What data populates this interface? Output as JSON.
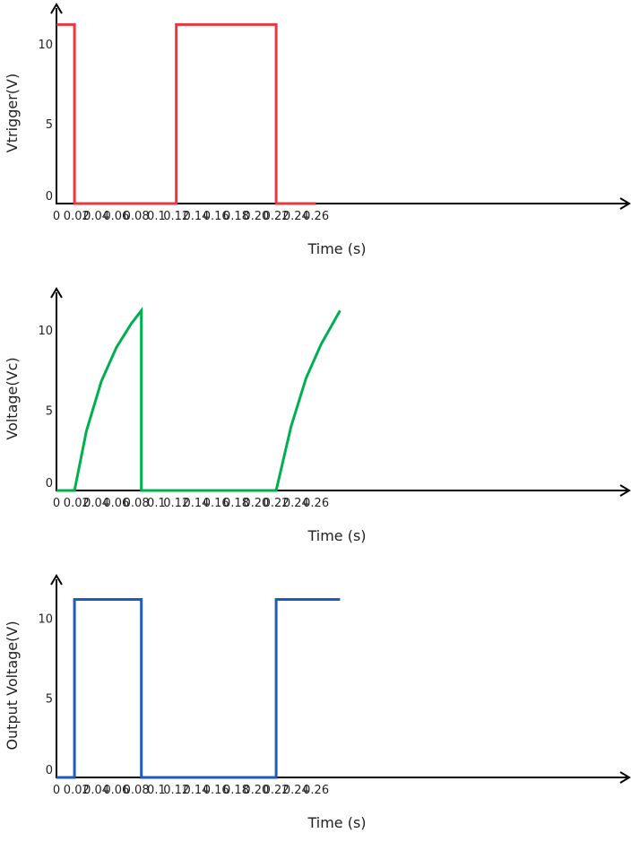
{
  "chart_data": [
    {
      "type": "line",
      "title": "",
      "xlabel": "Time (s)",
      "ylabel": "Vtrigger(V)",
      "xlim": [
        0,
        0.28
      ],
      "ylim": [
        0,
        11
      ],
      "x_ticks": [
        "0",
        "0.02",
        "0.04",
        "0.06",
        "0.08",
        "0.1",
        "0.12",
        "0.14",
        "0.16",
        "0.18",
        "0.20",
        "0.22",
        "0.24",
        "0.26"
      ],
      "y_ticks": [
        "0",
        "5",
        "10"
      ],
      "grid": false,
      "color": "#e8383d",
      "series": [
        {
          "x": [
            0,
            0.018,
            0.018,
            0.12,
            0.12,
            0.22,
            0.22,
            0.26
          ],
          "y": [
            11.2,
            11.2,
            0,
            0,
            11.2,
            11.2,
            0,
            0
          ]
        }
      ]
    },
    {
      "type": "line",
      "title": "",
      "xlabel": "Time (s)",
      "ylabel": "Voltage(Vc)",
      "xlim": [
        0,
        0.28
      ],
      "ylim": [
        0,
        11
      ],
      "x_ticks": [
        "0",
        "0.02",
        "0.04",
        "0.06",
        "0.08",
        "0.1",
        "0.12",
        "0.14",
        "0.16",
        "0.18",
        "0.20",
        "0.22",
        "0.24",
        "0.26"
      ],
      "y_ticks": [
        "0",
        "5",
        "10"
      ],
      "grid": false,
      "color": "#00b050",
      "series": [
        {
          "x": [
            0,
            0.018,
            0.03,
            0.045,
            0.06,
            0.075,
            0.085,
            0.085,
            0.22,
            0.235,
            0.25,
            0.265,
            0.284
          ],
          "y": [
            0,
            0,
            3.7,
            6.8,
            8.9,
            10.4,
            11.2,
            0,
            0,
            4.0,
            7.0,
            9.1,
            11.2
          ]
        }
      ]
    },
    {
      "type": "line",
      "title": "",
      "xlabel": "Time (s)",
      "ylabel": "Output Voltage(V)",
      "xlim": [
        0,
        0.28
      ],
      "ylim": [
        0,
        11
      ],
      "x_ticks": [
        "0",
        "0.02",
        "0.04",
        "0.06",
        "0.08",
        "0.1",
        "0.12",
        "0.14",
        "0.16",
        "0.18",
        "0.20",
        "0.22",
        "0.24",
        "0.26"
      ],
      "y_ticks": [
        "0",
        "5",
        "10"
      ],
      "grid": false,
      "color": "#1f5bbf",
      "series": [
        {
          "x": [
            0,
            0.018,
            0.018,
            0.085,
            0.085,
            0.22,
            0.22,
            0.284
          ],
          "y": [
            0,
            0,
            11.2,
            11.2,
            0,
            0,
            11.2,
            11.2
          ]
        }
      ]
    }
  ]
}
